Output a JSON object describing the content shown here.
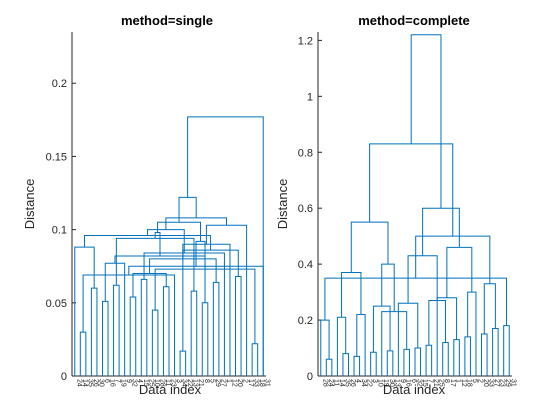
{
  "colors": {
    "link": "#0072BD",
    "axis": "#262626",
    "background": "#ffffff"
  },
  "chart_data": [
    {
      "type": "dendrogram",
      "title": "method=single",
      "xlabel": "Data index",
      "ylabel": "Distance",
      "ylim": [
        0,
        0.235
      ],
      "yticks": [
        0,
        0.05,
        0.1,
        0.15,
        0.2
      ],
      "ytick_labels": [
        "0",
        "0.05",
        "0.1",
        "0.15",
        "0.2"
      ],
      "grid": false,
      "leaf_labels": [
        "24",
        "14",
        "35",
        "26",
        "30",
        "6",
        "16",
        "7",
        "19",
        "9",
        "32",
        "4",
        "15",
        "25",
        "10",
        "28",
        "11",
        "23",
        "3",
        "34",
        "22",
        "13",
        "21",
        "8",
        "5",
        "29",
        "27",
        "1",
        "12",
        "20",
        "2",
        "17",
        "33",
        "18",
        "31"
      ],
      "links": [
        [
          19,
          20,
          0.017
        ],
        [
          32,
          33,
          0.022
        ],
        [
          1,
          2,
          0.03
        ],
        [
          14,
          15,
          0.045
        ],
        [
          23,
          24,
          0.05
        ],
        [
          5,
          6,
          0.051
        ],
        [
          10,
          11,
          0.054
        ],
        [
          21,
          22,
          0.058
        ],
        [
          3,
          4,
          0.06
        ],
        [
          16,
          17,
          0.061
        ],
        [
          7,
          8,
          0.062
        ],
        [
          25,
          26,
          0.064
        ],
        [
          12,
          13,
          0.066
        ],
        [
          29,
          30,
          0.068
        ],
        [
          37,
          18,
          0.069
        ],
        [
          41,
          44,
          0.07
        ],
        [
          38,
          36,
          0.073
        ],
        [
          34,
          49,
          0.075
        ],
        [
          40,
          9,
          0.077
        ],
        [
          46,
          50,
          0.08
        ],
        [
          51,
          53,
          0.082
        ],
        [
          47,
          27,
          0.084
        ],
        [
          48,
          54,
          0.086
        ],
        [
          43,
          0,
          0.088
        ],
        [
          35,
          28,
          0.09
        ],
        [
          52,
          39,
          0.092
        ],
        [
          42,
          45,
          0.094
        ],
        [
          57,
          58,
          0.096
        ],
        [
          55,
          61,
          0.098
        ],
        [
          56,
          62,
          0.1
        ],
        [
          59,
          31,
          0.103
        ],
        [
          60,
          63,
          0.105
        ],
        [
          64,
          65,
          0.108
        ],
        [
          66,
          67,
          0.122
        ],
        [
          68,
          34,
          0.177
        ]
      ]
    },
    {
      "type": "dendrogram",
      "title": "method=complete",
      "xlabel": "Data index",
      "ylabel": "Distance",
      "ylim": [
        0,
        1.23
      ],
      "yticks": [
        0,
        0.2,
        0.4,
        0.6,
        0.8,
        1.0,
        1.2
      ],
      "ytick_labels": [
        "0",
        "0.2",
        "0.4",
        "0.6",
        "0.8",
        "1",
        "1.2"
      ],
      "grid": false,
      "leaf_labels": [
        "28",
        "24",
        "11",
        "14",
        "35",
        "26",
        "4",
        "34",
        "22",
        "3",
        "10",
        "19",
        "30",
        "13",
        "9",
        "16",
        "6",
        "32",
        "15",
        "7",
        "21",
        "25",
        "8",
        "17",
        "1",
        "12",
        "18",
        "5",
        "2",
        "20",
        "33",
        "27",
        "23",
        "29",
        "31"
      ],
      "links": [
        [
          1,
          2,
          0.06
        ],
        [
          6,
          7,
          0.07
        ],
        [
          4,
          5,
          0.08
        ],
        [
          9,
          10,
          0.085
        ],
        [
          12,
          13,
          0.09
        ],
        [
          15,
          16,
          0.095
        ],
        [
          17,
          18,
          0.1
        ],
        [
          19,
          20,
          0.11
        ],
        [
          22,
          23,
          0.12
        ],
        [
          24,
          25,
          0.13
        ],
        [
          26,
          27,
          0.14
        ],
        [
          29,
          30,
          0.15
        ],
        [
          31,
          32,
          0.17
        ],
        [
          33,
          34,
          0.18
        ],
        [
          0,
          35,
          0.2
        ],
        [
          37,
          3,
          0.21
        ],
        [
          36,
          8,
          0.22
        ],
        [
          40,
          11,
          0.23
        ],
        [
          38,
          39,
          0.25
        ],
        [
          14,
          41,
          0.26
        ],
        [
          42,
          43,
          0.27
        ],
        [
          44,
          21,
          0.28
        ],
        [
          45,
          28,
          0.3
        ],
        [
          46,
          47,
          0.33
        ],
        [
          48,
          49,
          0.35
        ],
        [
          50,
          51,
          0.37
        ],
        [
          52,
          53,
          0.4
        ],
        [
          54,
          55,
          0.43
        ],
        [
          56,
          57,
          0.46
        ],
        [
          58,
          59,
          0.5
        ],
        [
          60,
          61,
          0.55
        ],
        [
          62,
          63,
          0.6
        ],
        [
          64,
          65,
          0.83
        ],
        [
          66,
          67,
          1.22
        ]
      ]
    }
  ]
}
